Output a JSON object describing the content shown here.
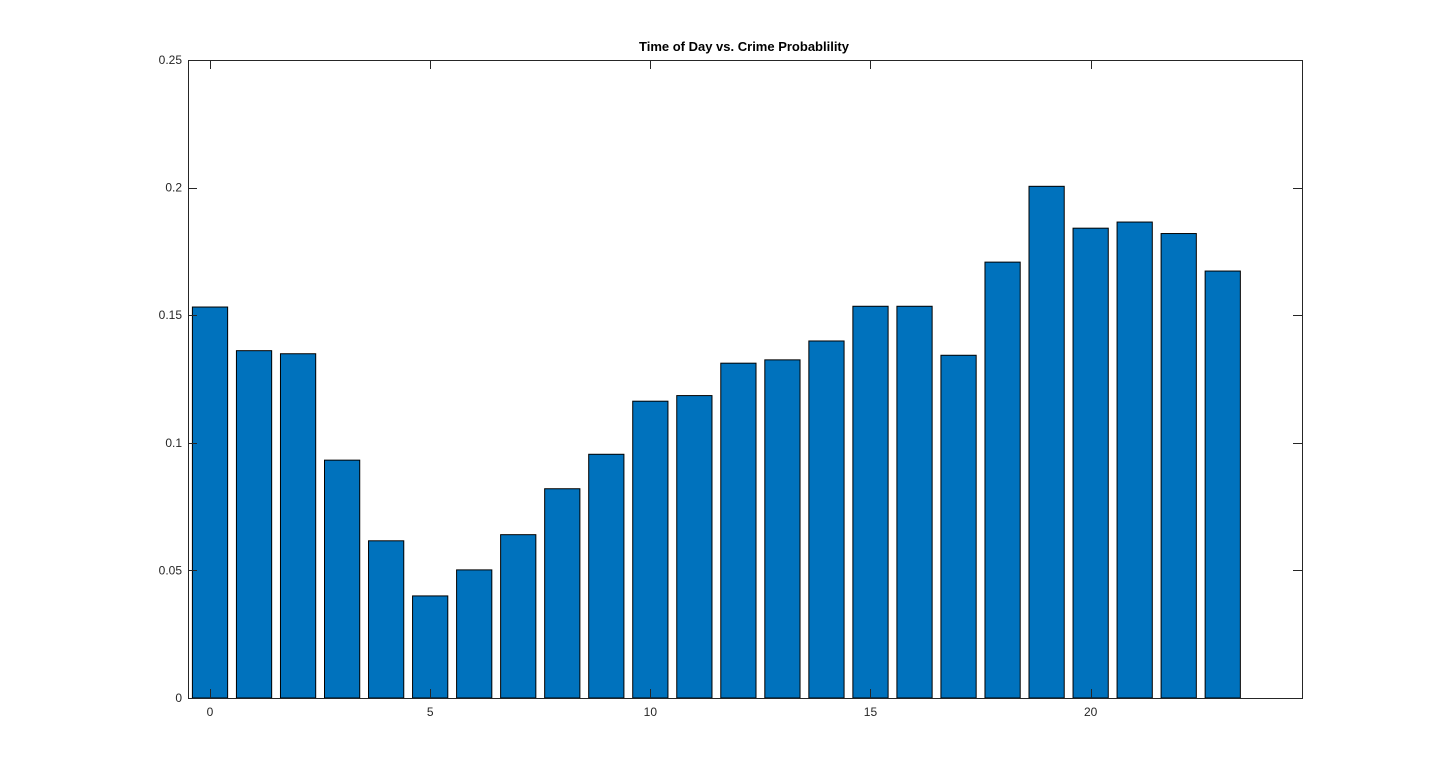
{
  "chart_data": {
    "type": "bar",
    "title": "Time of Day vs. Crime Probablility",
    "xlabel": "",
    "ylabel": "",
    "x": [
      0,
      1,
      2,
      3,
      4,
      5,
      6,
      7,
      8,
      9,
      10,
      11,
      12,
      13,
      14,
      15,
      16,
      17,
      18,
      19,
      20,
      21,
      22,
      23
    ],
    "values": [
      0.1532,
      0.1361,
      0.1349,
      0.0932,
      0.0616,
      0.04,
      0.0502,
      0.064,
      0.082,
      0.0955,
      0.1163,
      0.1185,
      0.1312,
      0.1325,
      0.1399,
      0.1535,
      0.1535,
      0.1343,
      0.1708,
      0.2005,
      0.1841,
      0.1865,
      0.182,
      0.1673
    ],
    "xlim": [
      -0.5,
      24.8
    ],
    "ylim": [
      0,
      0.25
    ],
    "xticks": [
      0,
      5,
      10,
      15,
      20
    ],
    "yticks": [
      0,
      0.05,
      0.1,
      0.15,
      0.2,
      0.25
    ],
    "xtick_labels": [
      "0",
      "5",
      "10",
      "15",
      "20"
    ],
    "ytick_labels": [
      "0",
      "0.05",
      "0.1",
      "0.15",
      "0.2",
      "0.25"
    ],
    "grid": false,
    "legend": "none",
    "bar_color": "#0072BD",
    "edge_color": "#000000"
  }
}
